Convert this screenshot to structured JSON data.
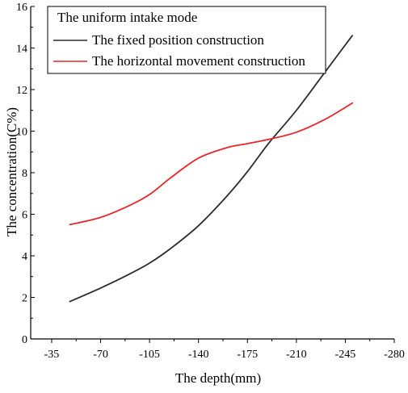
{
  "chart_data": {
    "type": "line",
    "xlabel": "The depth(mm)",
    "ylabel": "The concentration(C%)",
    "xlim": [
      -20,
      -280
    ],
    "ylim": [
      0,
      16
    ],
    "x_ticks": [
      -35,
      -70,
      -105,
      -140,
      -175,
      -210,
      -245,
      -280
    ],
    "y_ticks": [
      0,
      2,
      4,
      6,
      8,
      10,
      12,
      14,
      16
    ],
    "grid": false,
    "legend": {
      "position": "top-left",
      "title": "The uniform intake mode"
    },
    "series": [
      {
        "name": "The fixed position construction",
        "color": "#2b2b2b",
        "x": [
          -48,
          -70,
          -90,
          -105,
          -120,
          -140,
          -160,
          -175,
          -190,
          -210,
          -230,
          -250
        ],
        "y": [
          1.8,
          2.45,
          3.1,
          3.65,
          4.35,
          5.45,
          6.85,
          8.05,
          9.4,
          11.0,
          12.8,
          14.6
        ]
      },
      {
        "name": "The horizontal movement construction",
        "color": "#e8262a",
        "x": [
          -48,
          -70,
          -90,
          -105,
          -120,
          -140,
          -160,
          -175,
          -190,
          -210,
          -230,
          -250
        ],
        "y": [
          5.5,
          5.85,
          6.4,
          6.95,
          7.75,
          8.7,
          9.2,
          9.4,
          9.6,
          9.95,
          10.55,
          11.35
        ]
      }
    ]
  }
}
